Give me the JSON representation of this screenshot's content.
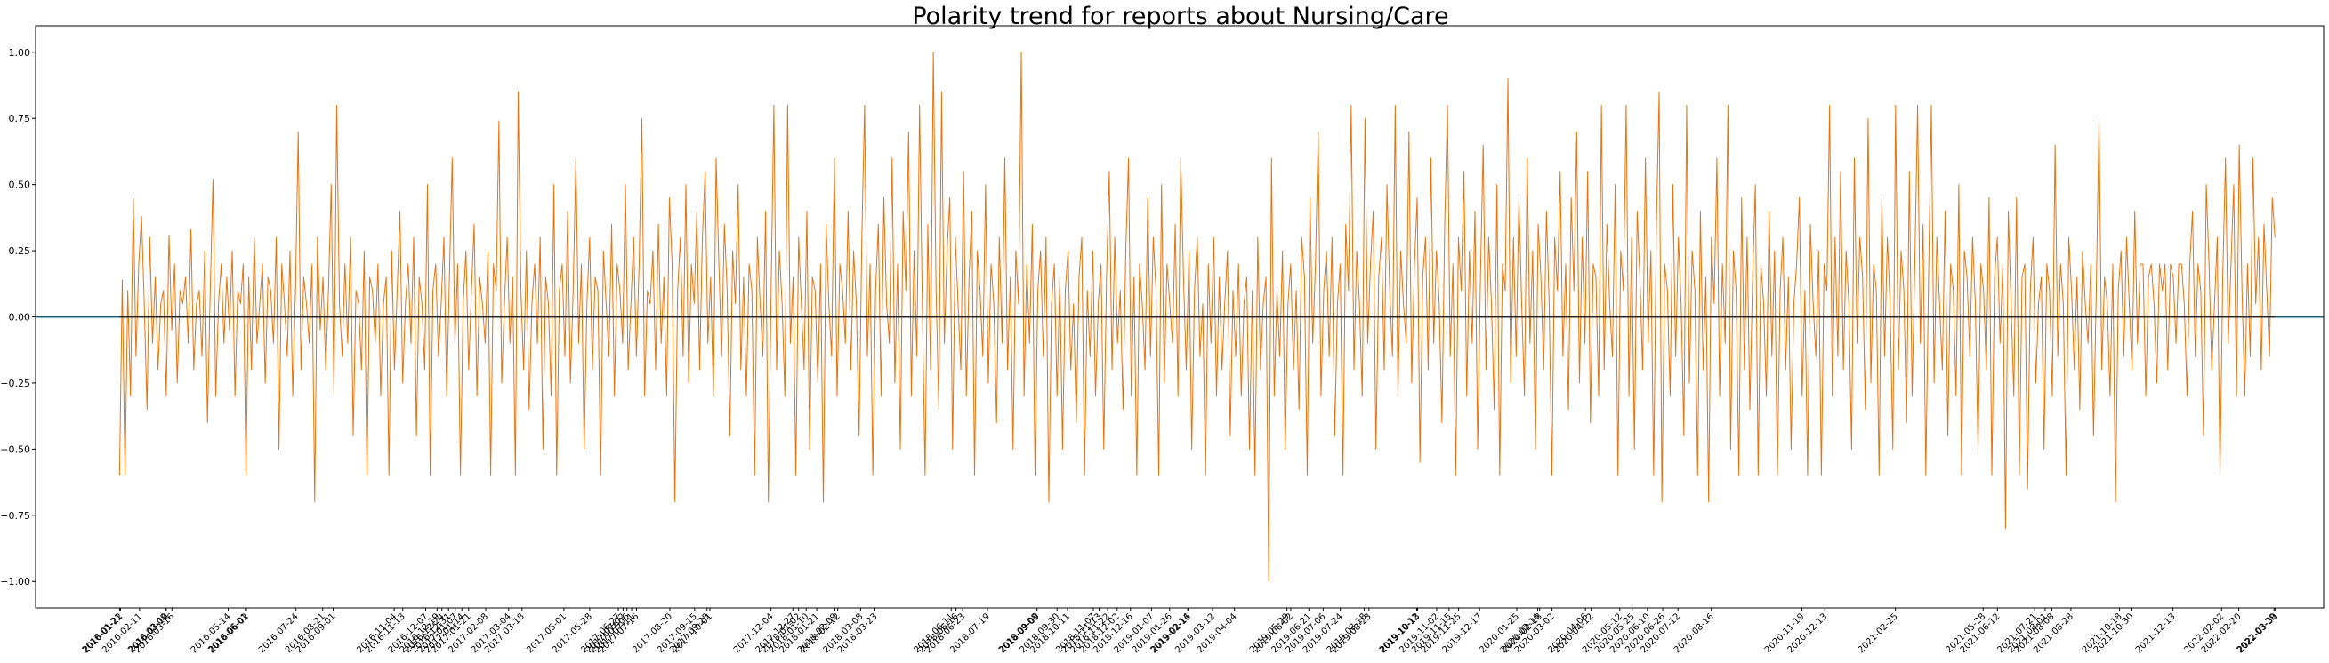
{
  "chart_data": {
    "type": "line",
    "title": "Polarity trend for reports about Nursing/Care",
    "xlabel": "",
    "ylabel": "",
    "ylim": [
      -1.1,
      1.1
    ],
    "xlim": [
      "2015-10-25",
      "2022-05-20"
    ],
    "yticks": [
      -1.0,
      -0.75,
      -0.5,
      -0.25,
      0.0,
      0.25,
      0.5,
      0.75,
      1.0
    ],
    "ytick_labels": [
      "−1.00",
      "−0.75",
      "−0.50",
      "−0.25",
      "0.00",
      "0.25",
      "0.50",
      "0.75",
      "1.00"
    ],
    "grid": false,
    "legend": "none",
    "x_range": [
      "2016-01-21",
      "2022-03-30"
    ],
    "xtick_labels": [
      "2016-01-21",
      "2016-01-22",
      "2016-02-11",
      "2016-03-09",
      "2016-03-10",
      "2016-03-16",
      "2016-05-14",
      "2016-06-01",
      "2016-06-02",
      "2016-07-24",
      "2016-08-21",
      "2016-09-01",
      "2016-11-04",
      "2016-11-13",
      "2016-12-07",
      "2016-12-19",
      "2016-12-24",
      "2016-12-31",
      "2017-01-07",
      "2017-01-14",
      "2017-01-21",
      "2017-02-08",
      "2017-03-04",
      "2017-03-18",
      "2017-05-01",
      "2017-05-28",
      "2017-06-27",
      "2017-07-02",
      "2017-07-06",
      "2017-07-11",
      "2017-07-16",
      "2017-08-20",
      "2017-09-15",
      "2017-09-28",
      "2017-10-01",
      "2017-12-04",
      "2017-12-27",
      "2018-01-02",
      "2018-01-10",
      "2018-01-21",
      "2018-02-09",
      "2018-02-12",
      "2018-03-08",
      "2018-03-23",
      "2018-06-11",
      "2018-06-16",
      "2018-06-23",
      "2018-07-19",
      "2018-09-08",
      "2018-09-09",
      "2018-09-30",
      "2018-10-11",
      "2018-11-07",
      "2018-11-13",
      "2018-11-22",
      "2018-12-02",
      "2018-12-16",
      "2019-01-07",
      "2019-01-26",
      "2019-02-14",
      "2019-02-15",
      "2019-03-12",
      "2019-04-04",
      "2019-05-29",
      "2019-06-02",
      "2019-06-21",
      "2019-07-06",
      "2019-07-24",
      "2019-08-18",
      "2019-08-23",
      "2019-10-12",
      "2019-10-13",
      "2019-11-02",
      "2019-11-15",
      "2019-11-25",
      "2019-12-17",
      "2020-01-25",
      "2020-02-16",
      "2020-02-18",
      "2020-03-02",
      "2020-04-06",
      "2020-04-12",
      "2020-05-12",
      "2020-05-25",
      "2020-06-10",
      "2020-06-26",
      "2020-07-12",
      "2020-08-16",
      "2020-11-19",
      "2020-12-13",
      "2021-02-25",
      "2021-05-28",
      "2021-06-12",
      "2021-07-21",
      "2021-08-01",
      "2021-08-08",
      "2021-08-28",
      "2021-10-18",
      "2021-10-30",
      "2021-12-13",
      "2022-02-02",
      "2022-02-20",
      "2022-03-29",
      "2022-03-30"
    ],
    "series": [
      {
        "name": "",
        "color": "#e8730c",
        "x_start": "2016-01-21",
        "x_end": "2022-03-30",
        "values": [
          -0.6,
          0.14,
          -0.6,
          0.1,
          -0.3,
          0.45,
          -0.15,
          0.2,
          0.38,
          0.05,
          -0.35,
          0.3,
          -0.1,
          0.15,
          -0.2,
          0.05,
          0.1,
          -0.3,
          0.31,
          -0.05,
          0.2,
          -0.25,
          0.1,
          0.05,
          0.15,
          -0.1,
          0.33,
          -0.2,
          0.05,
          0.1,
          -0.15,
          0.25,
          -0.4,
          0.1,
          0.52,
          -0.3,
          0.05,
          0.2,
          -0.1,
          0.15,
          -0.05,
          0.25,
          -0.3,
          0.1,
          0.05,
          0.2,
          -0.6,
          0.15,
          -0.2,
          0.3,
          -0.1,
          0.05,
          0.2,
          -0.25,
          0.15,
          0.1,
          -0.1,
          0.3,
          -0.5,
          0.2,
          0.05,
          -0.15,
          0.25,
          -0.3,
          0.1,
          0.7,
          -0.2,
          0.15,
          0.05,
          -0.1,
          0.2,
          -0.7,
          0.3,
          -0.05,
          0.15,
          -0.2,
          0.1,
          0.5,
          -0.3,
          0.8,
          0.05,
          -0.15,
          0.2,
          -0.1,
          0.3,
          -0.45,
          0.1,
          0.05,
          -0.2,
          0.25,
          -0.6,
          0.15,
          0.1,
          -0.1,
          0.2,
          -0.3,
          0.05,
          0.15,
          -0.6,
          0.25,
          -0.2,
          0.1,
          0.4,
          -0.25,
          0.05,
          0.2,
          -0.1,
          0.3,
          -0.45,
          0.15,
          0.05,
          -0.2,
          0.5,
          -0.6,
          0.1,
          0.2,
          -0.15,
          0.05,
          0.3,
          -0.3,
          0.15,
          0.6,
          -0.1,
          0.2,
          -0.6,
          0.05,
          0.25,
          -0.2,
          0.1,
          0.35,
          -0.3,
          0.15,
          0.05,
          -0.1,
          0.25,
          -0.6,
          0.2,
          0.1,
          0.74,
          -0.25,
          0.05,
          0.3,
          -0.1,
          0.15,
          -0.6,
          0.85,
          0.1,
          -0.2,
          0.25,
          -0.35,
          0.05,
          0.2,
          -0.1,
          0.3,
          -0.5,
          0.15,
          0.05,
          -0.3,
          0.5,
          -0.6,
          0.1,
          0.2,
          -0.15,
          0.4,
          -0.25,
          0.1,
          0.6,
          -0.1,
          0.2,
          -0.5,
          0.05,
          0.3,
          -0.2,
          0.15,
          0.1,
          -0.6,
          0.25,
          0.05,
          -0.15,
          0.35,
          -0.3,
          0.2,
          0.1,
          -0.1,
          0.5,
          -0.2,
          0.05,
          0.3,
          -0.15,
          0.2,
          0.75,
          -0.3,
          0.1,
          0.05,
          0.25,
          -0.2,
          0.35,
          -0.1,
          0.15,
          -0.3,
          0.45,
          0.2,
          -0.7,
          0.1,
          0.3,
          -0.15,
          0.5,
          -0.25,
          0.2,
          0.05,
          0.4,
          -0.2,
          0.3,
          0.55,
          -0.1,
          0.15,
          -0.3,
          0.6,
          0.2,
          -0.15,
          0.35,
          0.1,
          -0.45,
          0.25,
          0.05,
          0.5,
          -0.2,
          0.15,
          -0.3,
          0.2,
          0.1,
          -0.6,
          0.3,
          0.05,
          -0.15,
          0.4,
          -0.7,
          0.1,
          0.8,
          -0.2,
          0.25,
          0.05,
          -0.3,
          0.8,
          -0.1,
          0.15,
          -0.6,
          0.3,
          0.05,
          -0.2,
          0.4,
          -0.5,
          0.15,
          0.1,
          -0.25,
          0.2,
          -0.7,
          0.35,
          0.05,
          -0.15,
          0.6,
          -0.3,
          0.2,
          0.1,
          -0.1,
          0.4,
          -0.2,
          0.25,
          0.05,
          -0.45,
          0.3,
          0.8,
          -0.15,
          0.2,
          -0.6,
          0.1,
          0.35,
          -0.3,
          0.45,
          0.05,
          -0.1,
          0.6,
          -0.25,
          0.2,
          -0.5,
          0.4,
          0.1,
          0.7,
          -0.3,
          0.25,
          -0.15,
          0.8,
          0.05,
          -0.6,
          0.35,
          -0.2,
          1.0,
          0.1,
          -0.35,
          0.85,
          -0.1,
          0.25,
          0.45,
          -0.5,
          0.3,
          0.05,
          -0.2,
          0.55,
          -0.3,
          0.15,
          0.4,
          -0.6,
          0.25,
          0.1,
          -0.15,
          0.5,
          -0.25,
          0.2,
          0.05,
          -0.4,
          0.3,
          -0.1,
          0.6,
          -0.2,
          0.15,
          -0.5,
          0.25,
          0.05,
          1.0,
          -0.3,
          0.2,
          -0.1,
          0.35,
          -0.6,
          0.1,
          0.25,
          -0.15,
          0.3,
          -0.7,
          0.05,
          0.2,
          -0.3,
          0.15,
          -0.5,
          0.1,
          0.25,
          -0.2,
          0.05,
          -0.4,
          0.15,
          0.3,
          -0.6,
          0.1,
          -0.15,
          0.25,
          -0.3,
          0.05,
          0.2,
          -0.5,
          0.15,
          0.55,
          -0.2,
          0.3,
          -0.1,
          0.1,
          -0.35,
          0.25,
          0.6,
          -0.3,
          0.15,
          -0.6,
          0.2,
          0.05,
          -0.2,
          0.45,
          -0.15,
          0.3,
          0.1,
          -0.6,
          0.5,
          -0.25,
          0.2,
          0.05,
          -0.1,
          0.35,
          -0.3,
          0.6,
          0.15,
          -0.2,
          0.25,
          -0.5,
          0.1,
          0.3,
          -0.15,
          0.05,
          -0.6,
          0.2,
          -0.1,
          0.3,
          -0.3,
          0.15,
          -0.2,
          0.05,
          0.25,
          -0.45,
          0.1,
          -0.15,
          0.2,
          -0.3,
          0.05,
          0.15,
          -0.5,
          0.1,
          -0.6,
          0.3,
          -0.2,
          0.05,
          0.15,
          -1.0,
          0.6,
          -0.3,
          0.1,
          -0.15,
          0.25,
          -0.5,
          0.05,
          0.2,
          -0.2,
          0.1,
          -0.35,
          0.3,
          0.15,
          -0.6,
          0.45,
          -0.1,
          0.2,
          0.7,
          -0.3,
          0.1,
          0.25,
          -0.15,
          0.3,
          -0.45,
          0.05,
          0.2,
          -0.6,
          0.35,
          0.1,
          0.8,
          -0.2,
          0.25,
          0.05,
          -0.3,
          0.75,
          -0.1,
          0.2,
          0.4,
          -0.5,
          0.15,
          0.3,
          -0.2,
          0.5,
          0.1,
          -0.15,
          0.8,
          -0.3,
          0.25,
          0.05,
          -0.1,
          0.7,
          -0.25,
          0.2,
          0.45,
          -0.55,
          0.15,
          0.3,
          -0.2,
          0.6,
          -0.1,
          0.25,
          0.05,
          -0.4,
          0.35,
          0.8,
          -0.15,
          0.2,
          -0.6,
          0.3,
          0.1,
          0.55,
          -0.3,
          0.25,
          -0.1,
          0.4,
          -0.5,
          0.15,
          0.65,
          -0.2,
          0.3,
          0.05,
          -0.35,
          0.5,
          -0.6,
          0.2,
          0.1,
          0.9,
          -0.25,
          0.3,
          -0.15,
          0.45,
          0.05,
          -0.3,
          0.6,
          -0.1,
          0.25,
          -0.5,
          0.35,
          0.15,
          -0.2,
          0.4,
          0.05,
          -0.6,
          0.3,
          0.1,
          0.55,
          -0.15,
          0.2,
          -0.35,
          0.45,
          0.1,
          0.7,
          -0.25,
          0.3,
          -0.1,
          0.55,
          -0.4,
          0.2,
          0.15,
          -0.3,
          0.8,
          -0.2,
          0.35,
          0.05,
          -0.15,
          0.5,
          -0.6,
          0.25,
          0.1,
          0.8,
          -0.3,
          0.3,
          -0.5,
          0.4,
          0.15,
          -0.2,
          0.6,
          -0.1,
          0.25,
          -0.6,
          0.35,
          0.85,
          -0.7,
          0.2,
          0.1,
          -0.3,
          0.5,
          -0.15,
          0.3,
          0.05,
          -0.45,
          0.8,
          -0.25,
          0.25,
          0.1,
          -0.6,
          0.4,
          -0.2,
          0.15,
          -0.7,
          0.3,
          0.05,
          0.6,
          -0.3,
          0.2,
          -0.1,
          0.8,
          -0.5,
          0.25,
          0.1,
          -0.6,
          0.45,
          -0.2,
          0.3,
          -0.35,
          0.15,
          0.5,
          -0.6,
          0.2,
          0.05,
          -0.3,
          0.4,
          -0.15,
          0.25,
          -0.6,
          0.1,
          0.3,
          -0.2,
          0.15,
          -0.5,
          0.05,
          0.2,
          0.45,
          -0.3,
          0.1,
          -0.6,
          0.35,
          0.05,
          -0.15,
          0.25,
          -0.6,
          0.2,
          0.1,
          0.8,
          -0.3,
          0.3,
          -0.15,
          0.55,
          -0.2,
          0.25,
          0.05,
          -0.5,
          0.6,
          -0.1,
          0.3,
          0.15,
          -0.35,
          0.75,
          -0.25,
          0.2,
          0.1,
          -0.6,
          0.45,
          -0.15,
          0.3,
          0.05,
          -0.5,
          0.8,
          -0.2,
          0.25,
          0.1,
          -0.4,
          0.55,
          -0.3,
          0.2,
          0.8,
          -0.1,
          0.35,
          -0.6,
          0.15,
          0.8,
          -0.25,
          0.3,
          0.05,
          -0.2,
          0.4,
          -0.45,
          0.2,
          0.1,
          -0.3,
          0.5,
          -0.6,
          0.25,
          0.15,
          -0.15,
          0.3,
          0.05,
          -0.5,
          0.2,
          0.1,
          -0.2,
          0.45,
          -0.6,
          0.15,
          0.3,
          -0.1,
          0.2,
          -0.8,
          0.4,
          0.05,
          -0.3,
          0.45,
          -0.6,
          0.15,
          0.2,
          -0.65,
          0.1,
          0.3,
          -0.25,
          0.05,
          0.15,
          -0.5,
          0.2,
          0.1,
          -0.3,
          0.65,
          -0.15,
          0.2,
          0.05,
          -0.6,
          0.3,
          0.1,
          -0.2,
          0.15,
          -0.35,
          0.25,
          0.05,
          -0.1,
          0.2,
          -0.45,
          0.1,
          0.75,
          -0.2,
          0.15,
          0.05,
          -0.3,
          0.2,
          -0.7,
          0.1,
          0.25,
          -0.15,
          0.3,
          0.05,
          -0.2,
          0.4,
          -0.1,
          0.2,
          0.2,
          -0.3,
          0.15,
          0.2,
          0.05,
          -0.25,
          0.2,
          0.1,
          0.2,
          -0.2,
          0.2,
          0.15,
          -0.1,
          0.2,
          0.2,
          0.05,
          -0.3,
          0.2,
          0.4,
          -0.15,
          0.2,
          0.1,
          -0.45,
          0.5,
          0.2,
          -0.2,
          0.05,
          0.3,
          -0.6,
          0.15,
          0.6,
          -0.1,
          0.2,
          0.5,
          -0.3,
          0.65,
          0.1,
          -0.3,
          0.2,
          -0.15,
          0.6,
          0.05,
          0.3,
          -0.2,
          0.35,
          0.1,
          -0.15,
          0.45,
          0.3
        ]
      }
    ]
  }
}
